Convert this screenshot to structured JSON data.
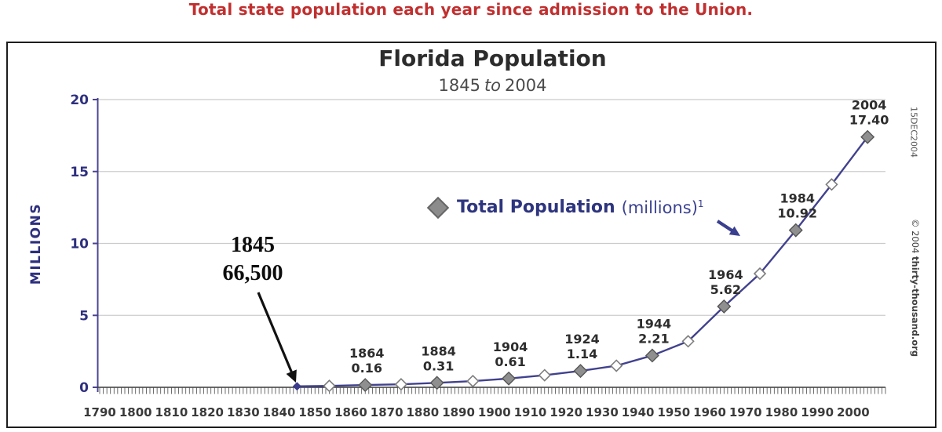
{
  "page": {
    "header": "Total state population each year since admission to the Union.",
    "side_notes": {
      "date_stamp": "15DEC2004",
      "copyright_prefix": "© 2004 ",
      "copyright_site": "thirty-thousand.org"
    }
  },
  "chart_data": {
    "type": "line",
    "title": "Florida Population",
    "subtitle_parts": {
      "from": "1845",
      "connector": "to",
      "to": "2004"
    },
    "ylabel": "MILLIONS",
    "ylim": [
      0,
      20
    ],
    "yticks": [
      0,
      5,
      10,
      15,
      20
    ],
    "xlim": [
      1790,
      2009
    ],
    "xticks": [
      1790,
      1800,
      1810,
      1820,
      1830,
      1840,
      1850,
      1860,
      1870,
      1880,
      1890,
      1900,
      1910,
      1920,
      1930,
      1940,
      1950,
      1960,
      1970,
      1980,
      1990,
      2000
    ],
    "grid": "horizontal",
    "legend": {
      "position": "center-right of plot",
      "title": "Total Population",
      "units": "(millions)",
      "footnote_mark": "1"
    },
    "annotation": {
      "line1": "1845",
      "line2": "66,500"
    },
    "series": [
      {
        "name": "Total Population (millions)",
        "points": [
          {
            "year": 1845,
            "value": 0.0665,
            "marker": "start"
          },
          {
            "year": 1854,
            "value": 0.1,
            "marker": "open"
          },
          {
            "year": 1864,
            "value": 0.16,
            "marker": "filled",
            "label_year": "1864",
            "label_value": "0.16"
          },
          {
            "year": 1874,
            "value": 0.21,
            "marker": "open"
          },
          {
            "year": 1884,
            "value": 0.31,
            "marker": "filled",
            "label_year": "1884",
            "label_value": "0.31"
          },
          {
            "year": 1894,
            "value": 0.43,
            "marker": "open"
          },
          {
            "year": 1904,
            "value": 0.61,
            "marker": "filled",
            "label_year": "1904",
            "label_value": "0.61"
          },
          {
            "year": 1914,
            "value": 0.84,
            "marker": "open"
          },
          {
            "year": 1924,
            "value": 1.14,
            "marker": "filled",
            "label_year": "1924",
            "label_value": "1.14"
          },
          {
            "year": 1934,
            "value": 1.5,
            "marker": "open"
          },
          {
            "year": 1944,
            "value": 2.21,
            "marker": "filled",
            "label_year": "1944",
            "label_value": "2.21"
          },
          {
            "year": 1954,
            "value": 3.2,
            "marker": "open"
          },
          {
            "year": 1964,
            "value": 5.62,
            "marker": "filled",
            "label_year": "1964",
            "label_value": "5.62"
          },
          {
            "year": 1974,
            "value": 7.9,
            "marker": "open"
          },
          {
            "year": 1984,
            "value": 10.92,
            "marker": "filled",
            "label_year": "1984",
            "label_value": "10.92"
          },
          {
            "year": 1994,
            "value": 14.1,
            "marker": "open"
          },
          {
            "year": 2004,
            "value": 17.4,
            "marker": "filled",
            "label_year": "2004",
            "label_value": "17.40"
          }
        ]
      }
    ],
    "colors": {
      "header_red": "#c12f2f",
      "line": "#41418e",
      "y_axis": "#4b4490",
      "x_axis": "#3a3a3a",
      "grid": "#cbcbcb",
      "marker_filled": "#8f8f8f",
      "marker_filled_stroke": "#555555",
      "marker_open_fill": "#ffffff",
      "marker_open_stroke": "#7d7d7d",
      "marker_start": "#3a3a8a",
      "axis_text_navy": "#2e2f7e",
      "tick_text": "#3a3a3a",
      "point_label": "#2d2d2d",
      "annotation_arrow": "#111111",
      "legend_arrow": "#3b3f8f"
    }
  }
}
